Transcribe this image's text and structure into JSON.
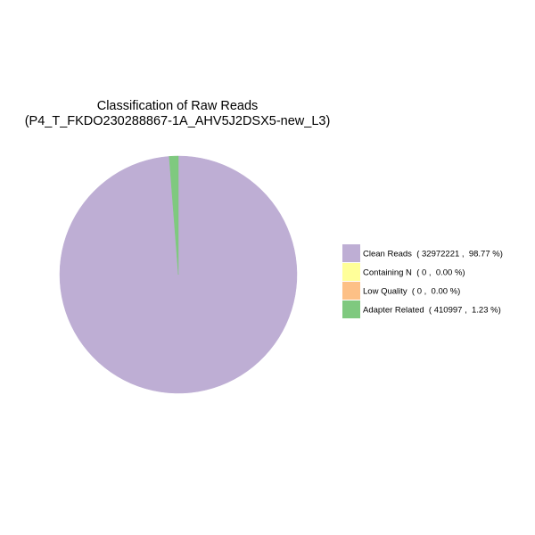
{
  "chart_data": {
    "type": "pie",
    "title": "Classification of Raw Reads",
    "subtitle": "(P4_T_FKDO230288867-1A_AHV5J2DSX5-new_L3)",
    "legend_position": "right",
    "slices": [
      {
        "label": "Clean Reads",
        "count": 32972221,
        "percent": 98.77,
        "color": "#beaed4",
        "legend_text": "Clean Reads  ( 32972221 ,  98.77 %)"
      },
      {
        "label": "Containing N",
        "count": 0,
        "percent": 0.0,
        "color": "#ffff99",
        "legend_text": "Containing N  ( 0 ,  0.00 %)"
      },
      {
        "label": "Low Quality",
        "count": 0,
        "percent": 0.0,
        "color": "#fdc086",
        "legend_text": "Low Quality  ( 0 ,  0.00 %)"
      },
      {
        "label": "Adapter Related",
        "count": 410997,
        "percent": 1.23,
        "color": "#7fc97f",
        "legend_text": "Adapter Related  ( 410997 ,  1.23 %)"
      }
    ]
  }
}
